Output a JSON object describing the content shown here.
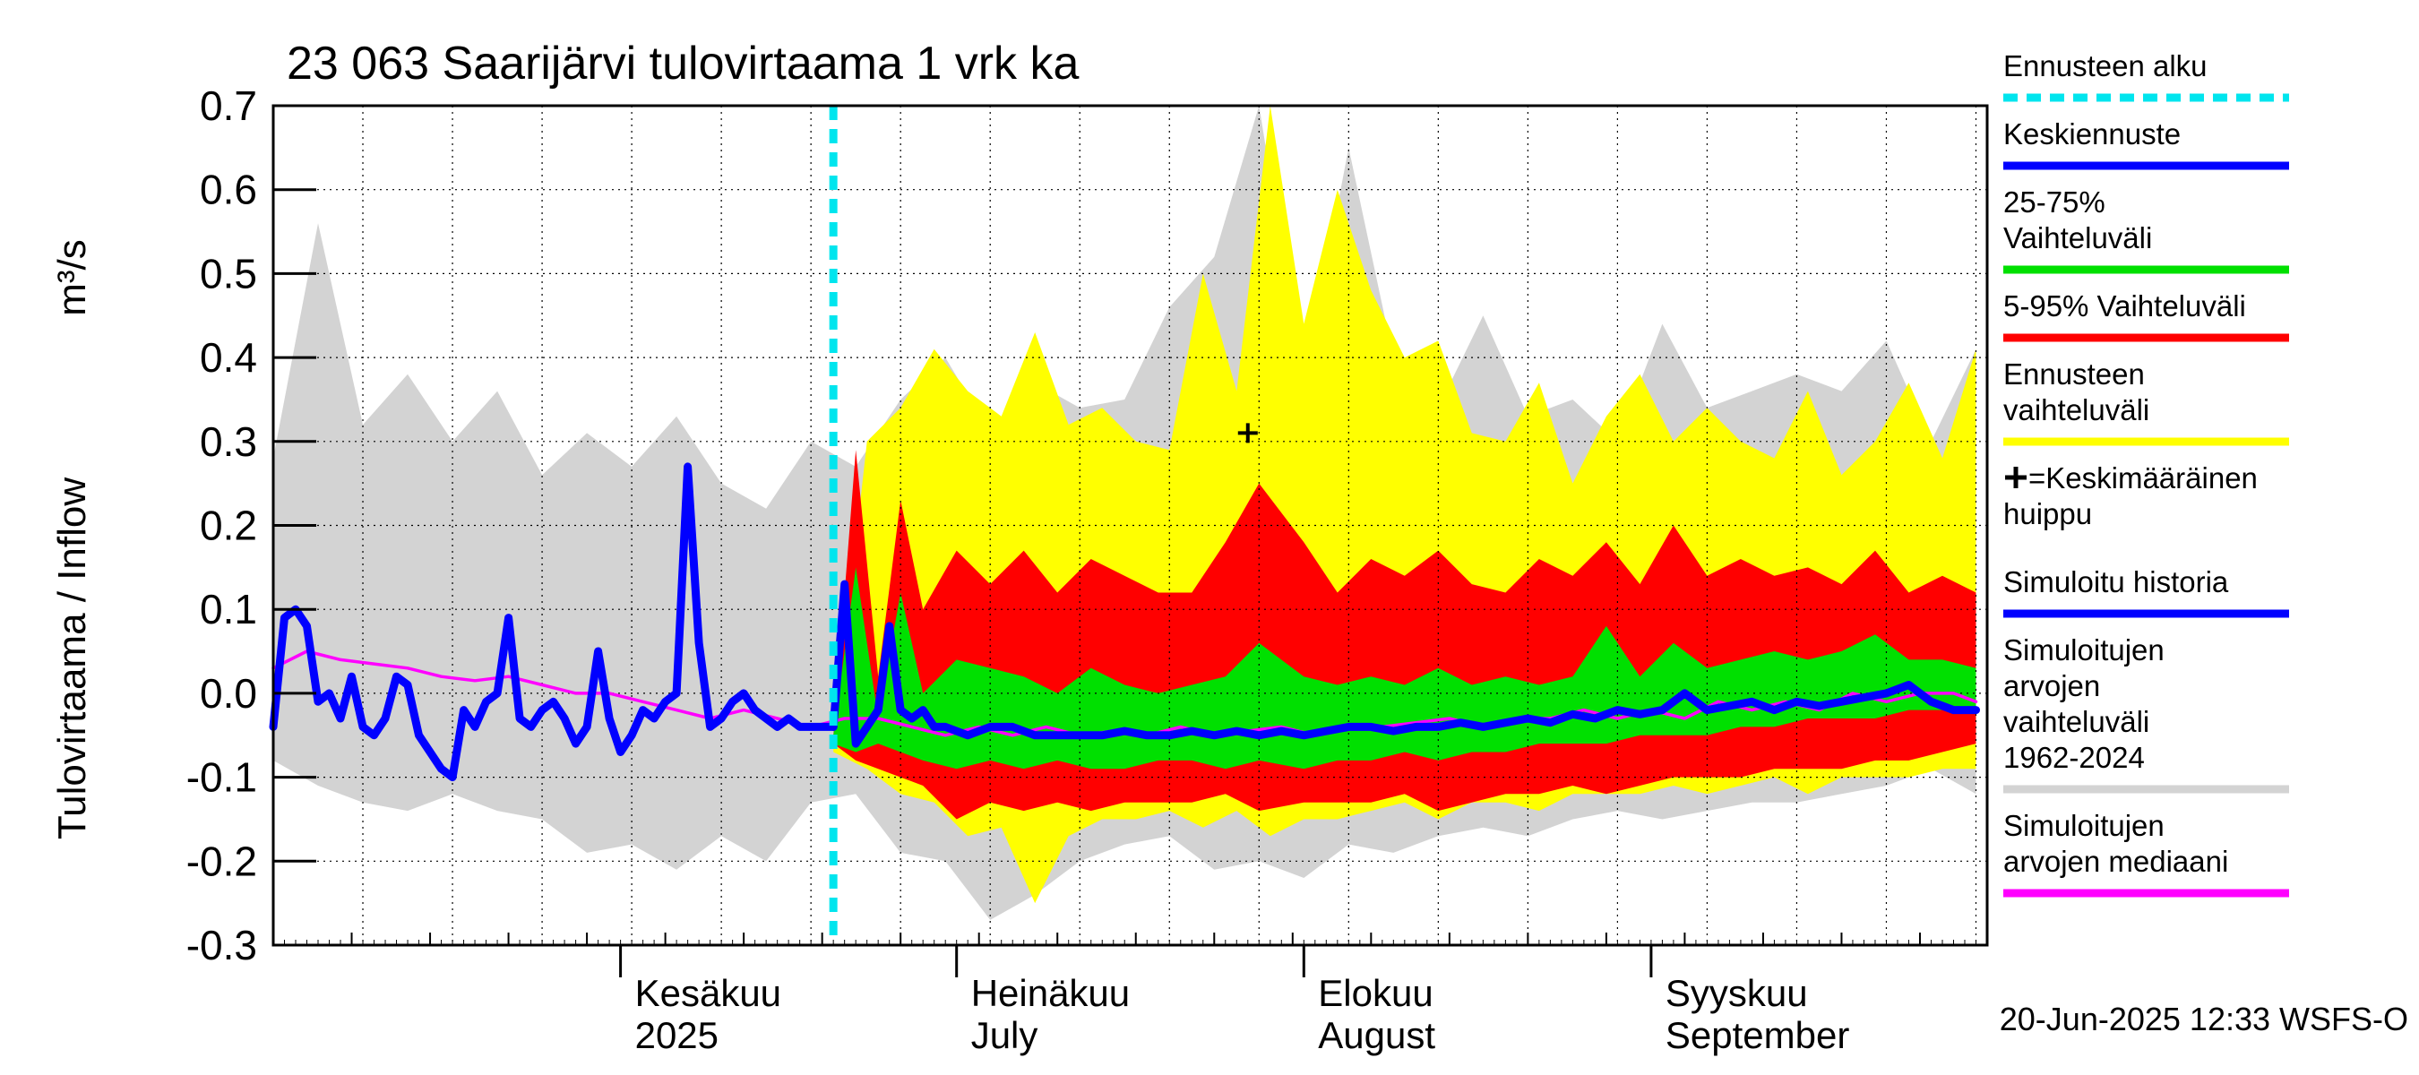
{
  "chart_data": {
    "type": "area",
    "title": "23 063 Saarijärvi tulovirtaama 1 vrk ka",
    "ylabel": "Tulovirtaama / Inflow",
    "yunit": "m³/s",
    "ylim": [
      -0.3,
      0.7
    ],
    "yticks": [
      -0.3,
      -0.2,
      -0.1,
      0.0,
      0.1,
      0.2,
      0.3,
      0.4,
      0.5,
      0.6,
      0.7
    ],
    "xlim": [
      "2025-05-01",
      "2025-09-30"
    ],
    "grid": true,
    "forecast_start": "2025-06-20",
    "month_labels": [
      {
        "date": "2025-06-01",
        "fi": "Kesäkuu",
        "en": "2025"
      },
      {
        "date": "2025-07-01",
        "fi": "Heinäkuu",
        "en": "July"
      },
      {
        "date": "2025-08-01",
        "fi": "Elokuu",
        "en": "August"
      },
      {
        "date": "2025-09-01",
        "fi": "Syyskuu",
        "en": "September"
      }
    ],
    "mean_peak": {
      "date": "2025-07-27",
      "value": 0.31
    },
    "legend": {
      "placement": "right",
      "items": [
        {
          "label": "Ennusteen alku",
          "color": "#00e5ee",
          "style": "dashed"
        },
        {
          "label": "Keskiennuste",
          "color": "#0000ff",
          "style": "solid"
        },
        {
          "label": "25-75% Vaihteluväli",
          "color": "#00e000",
          "style": "solid"
        },
        {
          "label": "5-95% Vaihteluväli",
          "color": "#ff0000",
          "style": "solid"
        },
        {
          "label": "Ennusteen vaihteluväli",
          "color": "#ffff00",
          "style": "solid"
        },
        {
          "label": "=Keskimääräinen huippu",
          "color": "#000000",
          "style": "marker"
        },
        {
          "label": "Simuloitu historia",
          "color": "#0000ff",
          "style": "solid"
        },
        {
          "label": "Simuloitujen arvojen vaihteluväli 1962-2024",
          "color": "#d3d3d3",
          "style": "solid"
        },
        {
          "label": "Simuloitujen arvojen mediaani",
          "color": "#ff00ff",
          "style": "solid"
        }
      ]
    },
    "series": [
      {
        "name": "Simuloitujen arvojen vaihteluväli 1962-2024",
        "color": "#d3d3d3",
        "kind": "band",
        "x": [
          "2025-05-01",
          "2025-05-05",
          "2025-05-09",
          "2025-05-13",
          "2025-05-17",
          "2025-05-21",
          "2025-05-25",
          "2025-05-29",
          "2025-06-02",
          "2025-06-06",
          "2025-06-10",
          "2025-06-14",
          "2025-06-18",
          "2025-06-22",
          "2025-06-26",
          "2025-06-30",
          "2025-07-04",
          "2025-07-08",
          "2025-07-12",
          "2025-07-16",
          "2025-07-20",
          "2025-07-24",
          "2025-07-28",
          "2025-08-01",
          "2025-08-05",
          "2025-08-09",
          "2025-08-13",
          "2025-08-17",
          "2025-08-21",
          "2025-08-25",
          "2025-08-29",
          "2025-09-02",
          "2025-09-06",
          "2025-09-10",
          "2025-09-14",
          "2025-09-18",
          "2025-09-22",
          "2025-09-26",
          "2025-09-30"
        ],
        "upper": [
          0.28,
          0.56,
          0.32,
          0.38,
          0.3,
          0.36,
          0.26,
          0.31,
          0.27,
          0.33,
          0.25,
          0.22,
          0.3,
          0.27,
          0.35,
          0.4,
          0.31,
          0.37,
          0.34,
          0.35,
          0.46,
          0.52,
          0.7,
          0.37,
          0.65,
          0.4,
          0.34,
          0.45,
          0.33,
          0.35,
          0.3,
          0.44,
          0.34,
          0.36,
          0.38,
          0.36,
          0.42,
          0.3,
          0.41
        ],
        "lower": [
          -0.08,
          -0.11,
          -0.13,
          -0.14,
          -0.12,
          -0.14,
          -0.15,
          -0.19,
          -0.18,
          -0.21,
          -0.17,
          -0.2,
          -0.13,
          -0.12,
          -0.19,
          -0.2,
          -0.27,
          -0.24,
          -0.2,
          -0.18,
          -0.17,
          -0.21,
          -0.2,
          -0.22,
          -0.18,
          -0.19,
          -0.17,
          -0.16,
          -0.17,
          -0.15,
          -0.14,
          -0.15,
          -0.14,
          -0.13,
          -0.13,
          -0.12,
          -0.11,
          -0.09,
          -0.12
        ]
      },
      {
        "name": "Ennusteen vaihteluväli",
        "color": "#ffff00",
        "kind": "band",
        "x": [
          "2025-06-20",
          "2025-06-23",
          "2025-06-26",
          "2025-06-29",
          "2025-07-02",
          "2025-07-05",
          "2025-07-08",
          "2025-07-11",
          "2025-07-14",
          "2025-07-17",
          "2025-07-20",
          "2025-07-23",
          "2025-07-26",
          "2025-07-29",
          "2025-08-01",
          "2025-08-04",
          "2025-08-07",
          "2025-08-10",
          "2025-08-13",
          "2025-08-16",
          "2025-08-19",
          "2025-08-22",
          "2025-08-25",
          "2025-08-28",
          "2025-08-31",
          "2025-09-03",
          "2025-09-06",
          "2025-09-09",
          "2025-09-12",
          "2025-09-15",
          "2025-09-18",
          "2025-09-21",
          "2025-09-24",
          "2025-09-27",
          "2025-09-30"
        ],
        "upper": [
          -0.06,
          0.3,
          0.34,
          0.41,
          0.36,
          0.33,
          0.43,
          0.32,
          0.34,
          0.3,
          0.29,
          0.5,
          0.36,
          0.7,
          0.44,
          0.6,
          0.48,
          0.4,
          0.42,
          0.31,
          0.3,
          0.37,
          0.25,
          0.33,
          0.38,
          0.3,
          0.34,
          0.3,
          0.28,
          0.36,
          0.26,
          0.3,
          0.37,
          0.28,
          0.41
        ],
        "lower": [
          -0.07,
          -0.09,
          -0.12,
          -0.13,
          -0.17,
          -0.16,
          -0.25,
          -0.17,
          -0.15,
          -0.15,
          -0.14,
          -0.16,
          -0.14,
          -0.17,
          -0.15,
          -0.15,
          -0.14,
          -0.13,
          -0.15,
          -0.13,
          -0.13,
          -0.14,
          -0.12,
          -0.12,
          -0.12,
          -0.11,
          -0.12,
          -0.11,
          -0.1,
          -0.12,
          -0.1,
          -0.1,
          -0.1,
          -0.09,
          -0.09
        ]
      },
      {
        "name": "5-95% Vaihteluväli",
        "color": "#ff0000",
        "kind": "band",
        "x": [
          "2025-06-20",
          "2025-06-22",
          "2025-06-24",
          "2025-06-26",
          "2025-06-28",
          "2025-07-01",
          "2025-07-04",
          "2025-07-07",
          "2025-07-10",
          "2025-07-13",
          "2025-07-16",
          "2025-07-19",
          "2025-07-22",
          "2025-07-25",
          "2025-07-28",
          "2025-08-01",
          "2025-08-04",
          "2025-08-07",
          "2025-08-10",
          "2025-08-13",
          "2025-08-16",
          "2025-08-19",
          "2025-08-22",
          "2025-08-25",
          "2025-08-28",
          "2025-08-31",
          "2025-09-03",
          "2025-09-06",
          "2025-09-09",
          "2025-09-12",
          "2025-09-15",
          "2025-09-18",
          "2025-09-21",
          "2025-09-24",
          "2025-09-27",
          "2025-09-30"
        ],
        "upper": [
          -0.05,
          0.29,
          0.02,
          0.23,
          0.1,
          0.17,
          0.13,
          0.17,
          0.12,
          0.16,
          0.14,
          0.12,
          0.12,
          0.18,
          0.25,
          0.18,
          0.12,
          0.16,
          0.14,
          0.17,
          0.13,
          0.12,
          0.16,
          0.14,
          0.18,
          0.13,
          0.2,
          0.14,
          0.16,
          0.14,
          0.15,
          0.13,
          0.17,
          0.12,
          0.14,
          0.12
        ],
        "lower": [
          -0.06,
          -0.08,
          -0.09,
          -0.1,
          -0.11,
          -0.15,
          -0.13,
          -0.14,
          -0.13,
          -0.14,
          -0.13,
          -0.13,
          -0.13,
          -0.12,
          -0.14,
          -0.13,
          -0.13,
          -0.13,
          -0.12,
          -0.14,
          -0.13,
          -0.12,
          -0.12,
          -0.11,
          -0.12,
          -0.11,
          -0.1,
          -0.1,
          -0.1,
          -0.09,
          -0.09,
          -0.09,
          -0.08,
          -0.08,
          -0.07,
          -0.06
        ]
      },
      {
        "name": "25-75% Vaihteluväli",
        "color": "#00e000",
        "kind": "band",
        "x": [
          "2025-06-20",
          "2025-06-22",
          "2025-06-24",
          "2025-06-26",
          "2025-06-28",
          "2025-07-01",
          "2025-07-04",
          "2025-07-07",
          "2025-07-10",
          "2025-07-13",
          "2025-07-16",
          "2025-07-19",
          "2025-07-22",
          "2025-07-25",
          "2025-07-28",
          "2025-08-01",
          "2025-08-04",
          "2025-08-07",
          "2025-08-10",
          "2025-08-13",
          "2025-08-16",
          "2025-08-19",
          "2025-08-22",
          "2025-08-25",
          "2025-08-28",
          "2025-08-31",
          "2025-09-03",
          "2025-09-06",
          "2025-09-09",
          "2025-09-12",
          "2025-09-15",
          "2025-09-18",
          "2025-09-21",
          "2025-09-24",
          "2025-09-27",
          "2025-09-30"
        ],
        "upper": [
          -0.05,
          0.15,
          -0.03,
          0.12,
          0.0,
          0.04,
          0.03,
          0.02,
          0.0,
          0.03,
          0.01,
          0.0,
          0.01,
          0.02,
          0.06,
          0.02,
          0.01,
          0.02,
          0.01,
          0.03,
          0.01,
          0.02,
          0.01,
          0.02,
          0.08,
          0.02,
          0.06,
          0.03,
          0.04,
          0.05,
          0.04,
          0.05,
          0.07,
          0.04,
          0.04,
          0.03
        ],
        "lower": [
          -0.06,
          -0.07,
          -0.06,
          -0.07,
          -0.08,
          -0.09,
          -0.08,
          -0.09,
          -0.08,
          -0.09,
          -0.09,
          -0.08,
          -0.08,
          -0.09,
          -0.08,
          -0.09,
          -0.08,
          -0.08,
          -0.07,
          -0.08,
          -0.07,
          -0.07,
          -0.06,
          -0.06,
          -0.06,
          -0.05,
          -0.05,
          -0.05,
          -0.04,
          -0.04,
          -0.03,
          -0.03,
          -0.03,
          -0.02,
          -0.02,
          -0.02
        ]
      },
      {
        "name": "Simuloitujen arvojen mediaani",
        "color": "#ff00ff",
        "kind": "line",
        "x": [
          "2025-05-01",
          "2025-05-04",
          "2025-05-07",
          "2025-05-10",
          "2025-05-13",
          "2025-05-16",
          "2025-05-19",
          "2025-05-22",
          "2025-05-25",
          "2025-05-28",
          "2025-05-31",
          "2025-06-03",
          "2025-06-06",
          "2025-06-09",
          "2025-06-12",
          "2025-06-15",
          "2025-06-18",
          "2025-06-21",
          "2025-06-24",
          "2025-06-27",
          "2025-06-30",
          "2025-07-03",
          "2025-07-06",
          "2025-07-09",
          "2025-07-12",
          "2025-07-15",
          "2025-07-18",
          "2025-07-21",
          "2025-07-24",
          "2025-07-27",
          "2025-07-30",
          "2025-08-02",
          "2025-08-05",
          "2025-08-08",
          "2025-08-11",
          "2025-08-14",
          "2025-08-17",
          "2025-08-20",
          "2025-08-23",
          "2025-08-26",
          "2025-08-29",
          "2025-09-01",
          "2025-09-04",
          "2025-09-07",
          "2025-09-10",
          "2025-09-13",
          "2025-09-16",
          "2025-09-19",
          "2025-09-22",
          "2025-09-25",
          "2025-09-28",
          "2025-09-30"
        ],
        "values": [
          0.03,
          0.05,
          0.04,
          0.035,
          0.03,
          0.02,
          0.015,
          0.02,
          0.01,
          0.0,
          0.0,
          -0.01,
          -0.02,
          -0.03,
          -0.02,
          -0.03,
          -0.04,
          -0.03,
          -0.03,
          -0.04,
          -0.05,
          -0.04,
          -0.05,
          -0.04,
          -0.05,
          -0.045,
          -0.05,
          -0.04,
          -0.05,
          -0.045,
          -0.04,
          -0.05,
          -0.04,
          -0.04,
          -0.035,
          -0.03,
          -0.04,
          -0.03,
          -0.03,
          -0.02,
          -0.03,
          -0.02,
          -0.03,
          -0.01,
          -0.02,
          -0.01,
          -0.02,
          0.0,
          -0.01,
          0.0,
          0.0,
          -0.01
        ]
      },
      {
        "name": "Simuloitu historia",
        "color": "#0000ff",
        "kind": "line",
        "x": [
          "2025-05-01",
          "2025-05-02",
          "2025-05-03",
          "2025-05-04",
          "2025-05-05",
          "2025-05-06",
          "2025-05-07",
          "2025-05-08",
          "2025-05-09",
          "2025-05-10",
          "2025-05-11",
          "2025-05-12",
          "2025-05-13",
          "2025-05-14",
          "2025-05-15",
          "2025-05-16",
          "2025-05-17",
          "2025-05-18",
          "2025-05-19",
          "2025-05-20",
          "2025-05-21",
          "2025-05-22",
          "2025-05-23",
          "2025-05-24",
          "2025-05-25",
          "2025-05-26",
          "2025-05-27",
          "2025-05-28",
          "2025-05-29",
          "2025-05-30",
          "2025-05-31",
          "2025-06-01",
          "2025-06-02",
          "2025-06-03",
          "2025-06-04",
          "2025-06-05",
          "2025-06-06",
          "2025-06-07",
          "2025-06-08",
          "2025-06-09",
          "2025-06-10",
          "2025-06-11",
          "2025-06-12",
          "2025-06-13",
          "2025-06-14",
          "2025-06-15",
          "2025-06-16",
          "2025-06-17",
          "2025-06-18",
          "2025-06-19",
          "2025-06-20"
        ],
        "values": [
          -0.04,
          0.09,
          0.1,
          0.08,
          -0.01,
          0.0,
          -0.03,
          0.02,
          -0.04,
          -0.05,
          -0.03,
          0.02,
          0.01,
          -0.05,
          -0.07,
          -0.09,
          -0.1,
          -0.02,
          -0.04,
          -0.01,
          0.0,
          0.09,
          -0.03,
          -0.04,
          -0.02,
          -0.01,
          -0.03,
          -0.06,
          -0.04,
          0.05,
          -0.03,
          -0.07,
          -0.05,
          -0.02,
          -0.03,
          -0.01,
          0.0,
          0.27,
          0.06,
          -0.04,
          -0.03,
          -0.01,
          0.0,
          -0.02,
          -0.03,
          -0.04,
          -0.03,
          -0.04,
          -0.04,
          -0.04,
          -0.04
        ]
      },
      {
        "name": "Keskiennuste",
        "color": "#0000ff",
        "kind": "line",
        "x": [
          "2025-06-20",
          "2025-06-21",
          "2025-06-22",
          "2025-06-23",
          "2025-06-24",
          "2025-06-25",
          "2025-06-26",
          "2025-06-27",
          "2025-06-28",
          "2025-06-29",
          "2025-06-30",
          "2025-07-02",
          "2025-07-04",
          "2025-07-06",
          "2025-07-08",
          "2025-07-10",
          "2025-07-12",
          "2025-07-14",
          "2025-07-16",
          "2025-07-18",
          "2025-07-20",
          "2025-07-22",
          "2025-07-24",
          "2025-07-26",
          "2025-07-28",
          "2025-07-30",
          "2025-08-01",
          "2025-08-03",
          "2025-08-05",
          "2025-08-07",
          "2025-08-09",
          "2025-08-11",
          "2025-08-13",
          "2025-08-15",
          "2025-08-17",
          "2025-08-19",
          "2025-08-21",
          "2025-08-23",
          "2025-08-25",
          "2025-08-27",
          "2025-08-29",
          "2025-08-31",
          "2025-09-02",
          "2025-09-04",
          "2025-09-06",
          "2025-09-08",
          "2025-09-10",
          "2025-09-12",
          "2025-09-14",
          "2025-09-16",
          "2025-09-18",
          "2025-09-20",
          "2025-09-22",
          "2025-09-24",
          "2025-09-26",
          "2025-09-28",
          "2025-09-30"
        ],
        "values": [
          -0.04,
          0.13,
          -0.06,
          -0.04,
          -0.02,
          0.08,
          -0.02,
          -0.03,
          -0.02,
          -0.04,
          -0.04,
          -0.05,
          -0.04,
          -0.04,
          -0.05,
          -0.05,
          -0.05,
          -0.05,
          -0.045,
          -0.05,
          -0.05,
          -0.045,
          -0.05,
          -0.045,
          -0.05,
          -0.045,
          -0.05,
          -0.045,
          -0.04,
          -0.04,
          -0.045,
          -0.04,
          -0.04,
          -0.035,
          -0.04,
          -0.035,
          -0.03,
          -0.035,
          -0.025,
          -0.03,
          -0.02,
          -0.025,
          -0.02,
          0.0,
          -0.02,
          -0.015,
          -0.01,
          -0.02,
          -0.01,
          -0.015,
          -0.01,
          -0.005,
          0.0,
          0.01,
          -0.01,
          -0.02,
          -0.02
        ]
      }
    ]
  },
  "footer": {
    "timestamp": "20-Jun-2025 12:33 WSFS-O"
  }
}
